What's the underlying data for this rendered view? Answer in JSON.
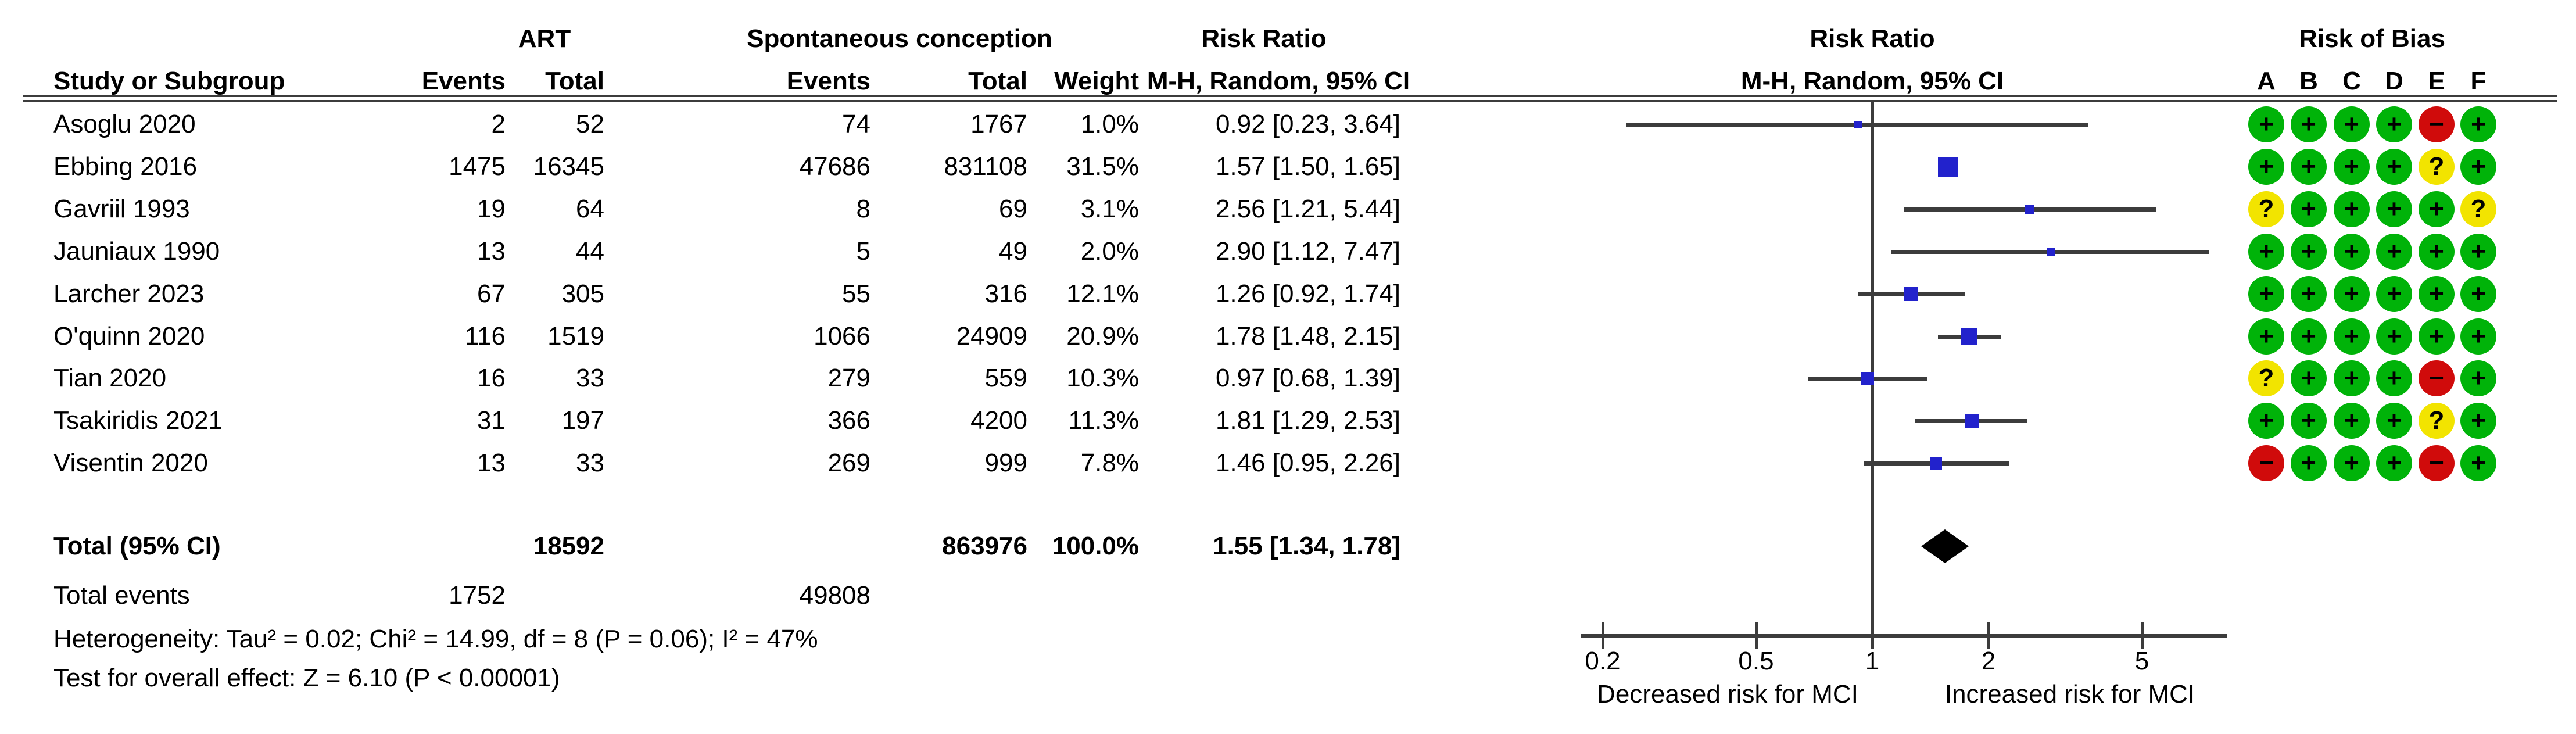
{
  "table": {
    "title_row": {
      "art": "ART",
      "spontaneous": "Spontaneous conception",
      "risk_ratio_text": "Risk Ratio",
      "risk_ratio_plot": "Risk Ratio",
      "risk_of_bias": "Risk of Bias"
    },
    "header_row": {
      "study": "Study or Subgroup",
      "art_events": "Events",
      "art_total": "Total",
      "sc_events": "Events",
      "sc_total": "Total",
      "weight": "Weight",
      "ci": "M-H, Random, 95% CI",
      "ci_plot": "M-H, Random, 95% CI"
    },
    "rob_letters": [
      "A",
      "B",
      "C",
      "D",
      "E",
      "F"
    ],
    "total_row": {
      "label": "Total (95% CI)",
      "art_total": "18592",
      "sc_total": "863976",
      "weight": "100.0%",
      "ci_text": "1.55 [1.34, 1.78]"
    },
    "total_events_row": {
      "label": "Total events",
      "art_events": "1752",
      "sc_events": "49808"
    },
    "heterogeneity": "Heterogeneity: Tau² = 0.02; Chi² = 14.99, df = 8 (P = 0.06); I² = 47%",
    "overall_effect": "Test for overall effect: Z = 6.10 (P < 0.00001)"
  },
  "axis": {
    "tick_labels": [
      "0.2",
      "0.5",
      "1",
      "2",
      "5"
    ],
    "tick_values": [
      0.2,
      0.5,
      1,
      2,
      5
    ],
    "left_label": "Decreased risk for MCI",
    "right_label": "Increased risk for MCI"
  },
  "colors": {
    "square_blue": "#2222cc",
    "diamond_black": "#000000",
    "line_gray": "#3c3c3c",
    "rob_green": "#00b309",
    "rob_yellow": "#f2e400",
    "rob_red": "#d00b0b"
  },
  "chart_data": {
    "type": "scatter",
    "subtype": "forest-plot",
    "effect_measure": "Risk Ratio",
    "method": "M-H, Random, 95% CI",
    "x_scale": "log",
    "x_ticks": [
      0.2,
      0.5,
      1,
      2,
      5
    ],
    "x_axis_left_label": "Decreased risk for MCI",
    "x_axis_right_label": "Increased risk for MCI",
    "legend": "Risk of bias columns A-F: + low risk (green), ? unclear (yellow), - high risk (red)",
    "studies": [
      {
        "name": "Asoglu 2020",
        "art_events": 2,
        "art_total": 52,
        "sc_events": 74,
        "sc_total": 1767,
        "weight_pct": 1.0,
        "weight": "1.0%",
        "rr": 0.92,
        "ci_low": 0.23,
        "ci_high": 3.64,
        "rr_text": "0.92 [0.23, 3.64]",
        "risk_of_bias": [
          "+",
          "+",
          "+",
          "+",
          "-",
          "+"
        ]
      },
      {
        "name": "Ebbing 2016",
        "art_events": 1475,
        "art_total": 16345,
        "sc_events": 47686,
        "sc_total": 831108,
        "weight_pct": 31.5,
        "weight": "31.5%",
        "rr": 1.57,
        "ci_low": 1.5,
        "ci_high": 1.65,
        "rr_text": "1.57 [1.50, 1.65]",
        "risk_of_bias": [
          "+",
          "+",
          "+",
          "+",
          "?",
          "+"
        ]
      },
      {
        "name": "Gavriil 1993",
        "art_events": 19,
        "art_total": 64,
        "sc_events": 8,
        "sc_total": 69,
        "weight_pct": 3.1,
        "weight": "3.1%",
        "rr": 2.56,
        "ci_low": 1.21,
        "ci_high": 5.44,
        "rr_text": "2.56 [1.21, 5.44]",
        "risk_of_bias": [
          "?",
          "+",
          "+",
          "+",
          "+",
          "?"
        ]
      },
      {
        "name": "Jauniaux 1990",
        "art_events": 13,
        "art_total": 44,
        "sc_events": 5,
        "sc_total": 49,
        "weight_pct": 2.0,
        "weight": "2.0%",
        "rr": 2.9,
        "ci_low": 1.12,
        "ci_high": 7.47,
        "rr_text": "2.90 [1.12, 7.47]",
        "risk_of_bias": [
          "+",
          "+",
          "+",
          "+",
          "+",
          "+"
        ]
      },
      {
        "name": "Larcher 2023",
        "art_events": 67,
        "art_total": 305,
        "sc_events": 55,
        "sc_total": 316,
        "weight_pct": 12.1,
        "weight": "12.1%",
        "rr": 1.26,
        "ci_low": 0.92,
        "ci_high": 1.74,
        "rr_text": "1.26 [0.92, 1.74]",
        "risk_of_bias": [
          "+",
          "+",
          "+",
          "+",
          "+",
          "+"
        ]
      },
      {
        "name": "O'quinn 2020",
        "art_events": 116,
        "art_total": 1519,
        "sc_events": 1066,
        "sc_total": 24909,
        "weight_pct": 20.9,
        "weight": "20.9%",
        "rr": 1.78,
        "ci_low": 1.48,
        "ci_high": 2.15,
        "rr_text": "1.78 [1.48, 2.15]",
        "risk_of_bias": [
          "+",
          "+",
          "+",
          "+",
          "+",
          "+"
        ]
      },
      {
        "name": "Tian 2020",
        "art_events": 16,
        "art_total": 33,
        "sc_events": 279,
        "sc_total": 559,
        "weight_pct": 10.3,
        "weight": "10.3%",
        "rr": 0.97,
        "ci_low": 0.68,
        "ci_high": 1.39,
        "rr_text": "0.97 [0.68, 1.39]",
        "risk_of_bias": [
          "?",
          "+",
          "+",
          "+",
          "-",
          "+"
        ]
      },
      {
        "name": "Tsakiridis 2021",
        "art_events": 31,
        "art_total": 197,
        "sc_events": 366,
        "sc_total": 4200,
        "weight_pct": 11.3,
        "weight": "11.3%",
        "rr": 1.81,
        "ci_low": 1.29,
        "ci_high": 2.53,
        "rr_text": "1.81 [1.29, 2.53]",
        "risk_of_bias": [
          "+",
          "+",
          "+",
          "+",
          "?",
          "+"
        ]
      },
      {
        "name": "Visentin 2020",
        "art_events": 13,
        "art_total": 33,
        "sc_events": 269,
        "sc_total": 999,
        "weight_pct": 7.8,
        "weight": "7.8%",
        "rr": 1.46,
        "ci_low": 0.95,
        "ci_high": 2.26,
        "rr_text": "1.46 [0.95, 2.26]",
        "risk_of_bias": [
          "-",
          "+",
          "+",
          "+",
          "-",
          "+"
        ]
      }
    ],
    "total": {
      "label": "Total (95% CI)",
      "art_total": 18592,
      "sc_total": 863976,
      "weight": "100.0%",
      "rr": 1.55,
      "ci_low": 1.34,
      "ci_high": 1.78,
      "rr_text": "1.55 [1.34, 1.78]",
      "art_events_total": 1752,
      "sc_events_total": 49808
    }
  }
}
